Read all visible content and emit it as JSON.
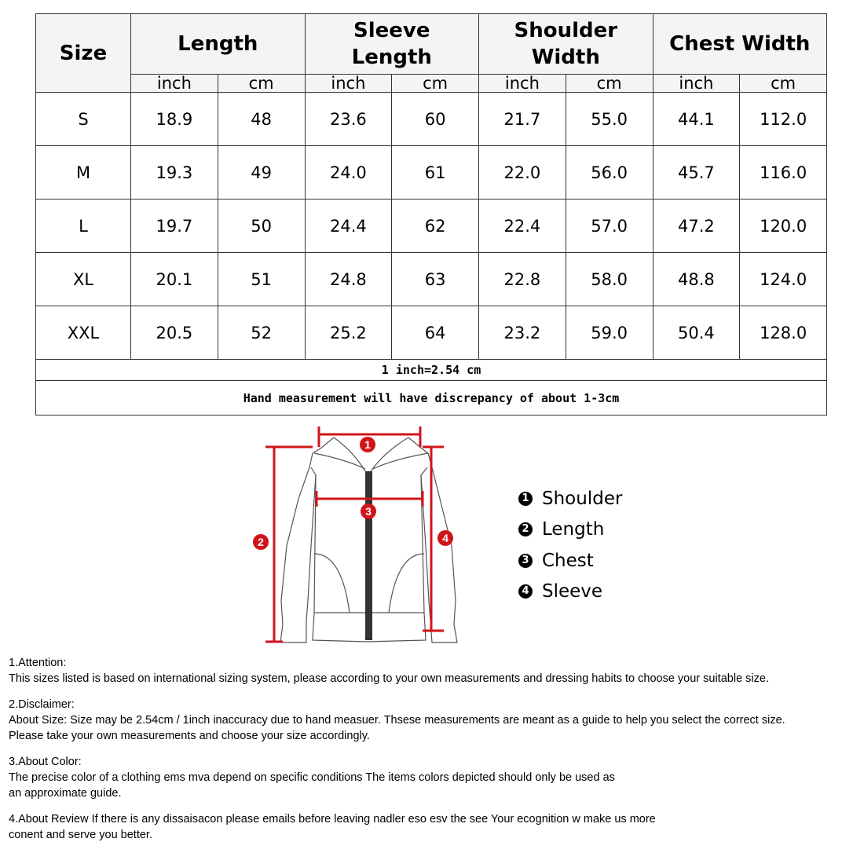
{
  "table": {
    "headers": [
      "Size",
      "Length",
      "Sleeve Length",
      "Shoulder Width",
      "Chest Width"
    ],
    "units": [
      "inch",
      "cm",
      "inch",
      "cm",
      "inch",
      "cm",
      "inch",
      "cm"
    ],
    "rows": [
      [
        "S",
        "18.9",
        "48",
        "23.6",
        "60",
        "21.7",
        "55.0",
        "44.1",
        "112.0"
      ],
      [
        "M",
        "19.3",
        "49",
        "24.0",
        "61",
        "22.0",
        "56.0",
        "45.7",
        "116.0"
      ],
      [
        "L",
        "19.7",
        "50",
        "24.4",
        "62",
        "22.4",
        "57.0",
        "47.2",
        "120.0"
      ],
      [
        "XL",
        "20.1",
        "51",
        "24.8",
        "63",
        "22.8",
        "58.0",
        "48.8",
        "124.0"
      ],
      [
        "XXL",
        "20.5",
        "52",
        "25.2",
        "64",
        "23.2",
        "59.0",
        "50.4",
        "128.0"
      ]
    ],
    "conversion": "1 inch=2.54 cm",
    "discrepancy": "Hand measurement will have discrepancy of about 1-3cm"
  },
  "diagram": {
    "markers": [
      "1",
      "2",
      "3",
      "4"
    ],
    "accent": "#d0141a"
  },
  "legend": [
    {
      "num": "1",
      "label": "Shoulder"
    },
    {
      "num": "2",
      "label": "Length"
    },
    {
      "num": "3",
      "label": "Chest"
    },
    {
      "num": "4",
      "label": "Sleeve"
    }
  ],
  "notes": [
    {
      "title": "1.Attention:",
      "lines": [
        "This sizes listed is based on international sizing system, please according to your own measurements and dressing habits to choose your suitable size."
      ]
    },
    {
      "title": "2.Disclaimer:",
      "lines": [
        "About Size: Size may be 2.54cm / 1inch inaccuracy due to hand measuer. Thsese measurements are meant as a guide to help you select the correct size.",
        "Please take your own measurements and choose your size accordingly."
      ]
    },
    {
      "title": "3.About Color:",
      "lines": [
        "The precise color of a clothing ems mva depend on specific conditions The items colors depicted should only be used as",
        "an approximate guide."
      ]
    },
    {
      "title": "4.About Review If there is any dissaisacon please emails before leaving nadler eso esv the see Your ecognition w make us more",
      "lines": [
        "conent and serve you better."
      ]
    }
  ]
}
